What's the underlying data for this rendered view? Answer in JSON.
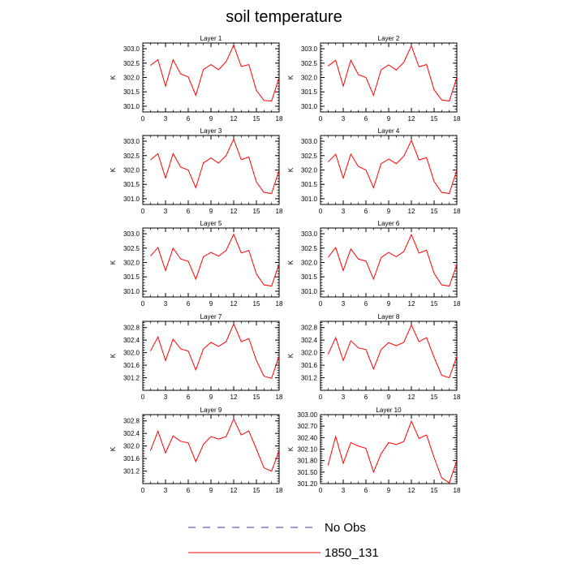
{
  "figure": {
    "title": "soil temperature"
  },
  "chart_data": [
    {
      "type": "line",
      "title": "Layer 1",
      "ylabel": "K",
      "x": [
        1,
        2,
        3,
        4,
        5,
        6,
        7,
        8,
        9,
        10,
        11,
        12,
        13,
        14,
        15,
        16,
        17,
        18
      ],
      "xticks": [
        0,
        3,
        6,
        9,
        12,
        15,
        18
      ],
      "xlim": [
        0,
        18
      ],
      "ylim": [
        300.8,
        303.2
      ],
      "yticks": [
        "301.0",
        "301.5",
        "302.0",
        "302.5",
        "303.0"
      ],
      "series": [
        {
          "name": "1850_131",
          "color": "#ff0000",
          "values": [
            302.42,
            302.62,
            301.7,
            302.62,
            302.12,
            302.02,
            301.38,
            302.28,
            302.45,
            302.27,
            302.55,
            303.12,
            302.38,
            302.45,
            301.55,
            301.2,
            301.18,
            302.0
          ]
        }
      ]
    },
    {
      "type": "line",
      "title": "Layer 2",
      "ylabel": "K",
      "x": [
        1,
        2,
        3,
        4,
        5,
        6,
        7,
        8,
        9,
        10,
        11,
        12,
        13,
        14,
        15,
        16,
        17,
        18
      ],
      "xticks": [
        0,
        3,
        6,
        9,
        12,
        15,
        18
      ],
      "xlim": [
        0,
        18
      ],
      "ylim": [
        300.8,
        303.2
      ],
      "yticks": [
        "301.0",
        "301.5",
        "302.0",
        "302.5",
        "303.0"
      ],
      "series": [
        {
          "name": "1850_131",
          "color": "#ff0000",
          "values": [
            302.4,
            302.6,
            301.7,
            302.6,
            302.1,
            302.0,
            301.38,
            302.27,
            302.44,
            302.26,
            302.53,
            303.1,
            302.37,
            302.45,
            301.57,
            301.22,
            301.18,
            302.0
          ]
        }
      ]
    },
    {
      "type": "line",
      "title": "Layer 3",
      "ylabel": "K",
      "x": [
        1,
        2,
        3,
        4,
        5,
        6,
        7,
        8,
        9,
        10,
        11,
        12,
        13,
        14,
        15,
        16,
        17,
        18
      ],
      "xticks": [
        0,
        3,
        6,
        9,
        12,
        15,
        18
      ],
      "xlim": [
        0,
        18
      ],
      "ylim": [
        300.8,
        303.2
      ],
      "yticks": [
        "301.0",
        "301.5",
        "302.0",
        "302.5",
        "303.0"
      ],
      "series": [
        {
          "name": "1850_131",
          "color": "#ff0000",
          "values": [
            302.35,
            302.57,
            301.72,
            302.57,
            302.1,
            302.0,
            301.38,
            302.25,
            302.42,
            302.24,
            302.5,
            303.07,
            302.36,
            302.45,
            301.58,
            301.22,
            301.18,
            302.0
          ]
        }
      ]
    },
    {
      "type": "line",
      "title": "Layer 4",
      "ylabel": "K",
      "x": [
        1,
        2,
        3,
        4,
        5,
        6,
        7,
        8,
        9,
        10,
        11,
        12,
        13,
        14,
        15,
        16,
        17,
        18
      ],
      "xticks": [
        0,
        3,
        6,
        9,
        12,
        15,
        18
      ],
      "xlim": [
        0,
        18
      ],
      "ylim": [
        300.8,
        303.2
      ],
      "yticks": [
        "301.0",
        "301.5",
        "302.0",
        "302.5",
        "303.0"
      ],
      "series": [
        {
          "name": "1850_131",
          "color": "#ff0000",
          "values": [
            302.28,
            302.55,
            301.72,
            302.55,
            302.12,
            302.0,
            301.38,
            302.22,
            302.38,
            302.22,
            302.48,
            303.03,
            302.35,
            302.43,
            301.6,
            301.22,
            301.18,
            302.0
          ]
        }
      ]
    },
    {
      "type": "line",
      "title": "Layer 5",
      "ylabel": "K",
      "x": [
        1,
        2,
        3,
        4,
        5,
        6,
        7,
        8,
        9,
        10,
        11,
        12,
        13,
        14,
        15,
        16,
        17,
        18
      ],
      "xticks": [
        0,
        3,
        6,
        9,
        12,
        15,
        18
      ],
      "xlim": [
        0,
        18
      ],
      "ylim": [
        300.8,
        303.2
      ],
      "yticks": [
        "301.0",
        "301.5",
        "302.0",
        "302.5",
        "303.0"
      ],
      "series": [
        {
          "name": "1850_131",
          "color": "#ff0000",
          "values": [
            302.22,
            302.52,
            301.72,
            302.5,
            302.12,
            302.04,
            301.42,
            302.2,
            302.35,
            302.22,
            302.42,
            302.98,
            302.33,
            302.42,
            301.6,
            301.22,
            301.18,
            301.95
          ]
        }
      ]
    },
    {
      "type": "line",
      "title": "Layer 6",
      "ylabel": "K",
      "x": [
        1,
        2,
        3,
        4,
        5,
        6,
        7,
        8,
        9,
        10,
        11,
        12,
        13,
        14,
        15,
        16,
        17,
        18
      ],
      "xticks": [
        0,
        3,
        6,
        9,
        12,
        15,
        18
      ],
      "xlim": [
        0,
        18
      ],
      "ylim": [
        300.8,
        303.2
      ],
      "yticks": [
        "301.0",
        "301.5",
        "302.0",
        "302.5",
        "303.0"
      ],
      "series": [
        {
          "name": "1850_131",
          "color": "#ff0000",
          "values": [
            302.18,
            302.52,
            301.72,
            302.47,
            302.12,
            302.05,
            301.42,
            302.17,
            302.35,
            302.2,
            302.38,
            302.97,
            302.33,
            302.43,
            301.62,
            301.22,
            301.18,
            301.92
          ]
        }
      ]
    },
    {
      "type": "line",
      "title": "Layer 7",
      "ylabel": "K",
      "x": [
        1,
        2,
        3,
        4,
        5,
        6,
        7,
        8,
        9,
        10,
        11,
        12,
        13,
        14,
        15,
        16,
        17,
        18
      ],
      "xticks": [
        0,
        3,
        6,
        9,
        12,
        15,
        18
      ],
      "xlim": [
        0,
        18
      ],
      "ylim": [
        300.8,
        303.0
      ],
      "yticks": [
        "301.2",
        "301.6",
        "302.0",
        "302.4",
        "302.8"
      ],
      "series": [
        {
          "name": "1850_131",
          "color": "#ff0000",
          "values": [
            302.05,
            302.5,
            301.75,
            302.43,
            302.12,
            302.05,
            301.45,
            302.12,
            302.33,
            302.2,
            302.35,
            302.92,
            302.35,
            302.45,
            301.75,
            301.25,
            301.18,
            301.9
          ]
        }
      ]
    },
    {
      "type": "line",
      "title": "Layer 8",
      "ylabel": "K",
      "x": [
        1,
        2,
        3,
        4,
        5,
        6,
        7,
        8,
        9,
        10,
        11,
        12,
        13,
        14,
        15,
        16,
        17,
        18
      ],
      "xticks": [
        0,
        3,
        6,
        9,
        12,
        15,
        18
      ],
      "xlim": [
        0,
        18
      ],
      "ylim": [
        300.8,
        303.0
      ],
      "yticks": [
        "301.2",
        "301.6",
        "302.0",
        "302.4",
        "302.8"
      ],
      "series": [
        {
          "name": "1850_131",
          "color": "#ff0000",
          "values": [
            301.95,
            302.48,
            301.75,
            302.38,
            302.15,
            302.1,
            301.48,
            302.1,
            302.32,
            302.22,
            302.33,
            302.88,
            302.35,
            302.48,
            301.85,
            301.28,
            301.2,
            301.88
          ]
        }
      ]
    },
    {
      "type": "line",
      "title": "Layer 9",
      "ylabel": "K",
      "x": [
        1,
        2,
        3,
        4,
        5,
        6,
        7,
        8,
        9,
        10,
        11,
        12,
        13,
        14,
        15,
        16,
        17,
        18
      ],
      "xticks": [
        0,
        3,
        6,
        9,
        12,
        15,
        18
      ],
      "xlim": [
        0,
        18
      ],
      "ylim": [
        300.8,
        303.0
      ],
      "yticks": [
        "301.2",
        "301.6",
        "302.0",
        "302.4",
        "302.8"
      ],
      "series": [
        {
          "name": "1850_131",
          "color": "#ff0000",
          "values": [
            301.85,
            302.47,
            301.78,
            302.32,
            302.15,
            302.1,
            301.5,
            302.05,
            302.3,
            302.22,
            302.3,
            302.86,
            302.35,
            302.48,
            301.9,
            301.3,
            301.2,
            301.85
          ]
        }
      ]
    },
    {
      "type": "line",
      "title": "Layer 10",
      "ylabel": "K",
      "x": [
        1,
        2,
        3,
        4,
        5,
        6,
        7,
        8,
        9,
        10,
        11,
        12,
        13,
        14,
        15,
        16,
        17,
        18
      ],
      "xticks": [
        0,
        3,
        6,
        9,
        12,
        15,
        18
      ],
      "xlim": [
        0,
        18
      ],
      "ylim": [
        301.2,
        303.0
      ],
      "yticks": [
        "301.20",
        "301.50",
        "301.80",
        "302.10",
        "302.40",
        "302.70",
        "303.00"
      ],
      "series": [
        {
          "name": "1850_131",
          "color": "#ff0000",
          "values": [
            301.68,
            302.43,
            301.73,
            302.27,
            302.18,
            302.12,
            301.5,
            301.98,
            302.27,
            302.22,
            302.3,
            302.83,
            302.38,
            302.47,
            301.88,
            301.35,
            301.22,
            301.8
          ]
        }
      ]
    }
  ],
  "legend": {
    "items": [
      {
        "label": "No Obs",
        "color": "#3a3aa8",
        "style": "dashed"
      },
      {
        "label": "1850_131",
        "color": "#ff0000",
        "style": "solid"
      }
    ]
  }
}
